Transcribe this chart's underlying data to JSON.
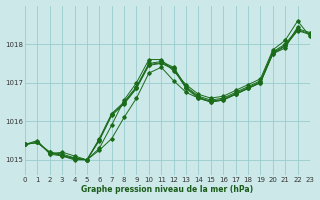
{
  "xlabel": "Graphe pression niveau de la mer (hPa)",
  "bg_color": "#cce8e8",
  "grid_color": "#99cccc",
  "line_color": "#1a6b1a",
  "xmin": 0,
  "xmax": 23,
  "ymin": 1014.6,
  "ymax": 1019.0,
  "yticks": [
    1015,
    1016,
    1017,
    1018
  ],
  "xticks": [
    0,
    1,
    2,
    3,
    4,
    5,
    6,
    7,
    8,
    9,
    10,
    11,
    12,
    13,
    14,
    15,
    16,
    17,
    18,
    19,
    20,
    21,
    22,
    23
  ],
  "series_smooth": {
    "x": [
      0,
      1,
      2,
      3,
      4,
      5,
      6,
      7,
      8,
      9,
      10,
      11,
      12,
      13,
      14,
      15,
      16,
      17,
      18,
      19,
      20,
      21,
      22,
      23
    ],
    "y": [
      1015.4,
      1015.45,
      1015.2,
      1015.15,
      1015.05,
      1015.0,
      1015.55,
      1016.2,
      1016.5,
      1016.9,
      1017.5,
      1017.55,
      1017.4,
      1016.9,
      1016.65,
      1016.55,
      1016.6,
      1016.75,
      1016.9,
      1017.05,
      1017.8,
      1018.0,
      1018.4,
      1018.3
    ]
  },
  "series_smooth2": {
    "x": [
      0,
      1,
      2,
      3,
      4,
      5,
      6,
      7,
      8,
      9,
      10,
      11,
      12,
      13,
      14,
      15,
      16,
      17,
      18,
      19,
      20,
      21,
      22,
      23
    ],
    "y": [
      1015.4,
      1015.45,
      1015.2,
      1015.1,
      1015.0,
      1015.0,
      1015.5,
      1016.15,
      1016.45,
      1016.85,
      1017.45,
      1017.5,
      1017.35,
      1016.85,
      1016.6,
      1016.5,
      1016.55,
      1016.7,
      1016.85,
      1017.0,
      1017.75,
      1017.95,
      1018.35,
      1018.25
    ]
  },
  "series_smooth3": {
    "x": [
      0,
      1,
      2,
      3,
      4,
      5,
      6,
      7,
      8,
      9,
      10,
      11,
      12,
      13,
      14,
      15,
      16,
      17,
      18,
      19,
      20,
      21,
      22,
      23
    ],
    "y": [
      1015.4,
      1015.45,
      1015.18,
      1015.12,
      1015.02,
      1015.0,
      1015.52,
      1016.18,
      1016.47,
      1016.87,
      1017.47,
      1017.52,
      1017.37,
      1016.87,
      1016.62,
      1016.52,
      1016.57,
      1016.72,
      1016.87,
      1017.02,
      1017.77,
      1017.97,
      1018.37,
      1018.27
    ]
  },
  "series_zigzag": {
    "x": [
      0,
      1,
      2,
      3,
      4,
      5,
      6,
      7,
      8,
      9,
      10,
      11,
      12,
      13,
      14,
      15,
      16,
      17,
      18,
      19,
      20,
      21,
      22,
      23
    ],
    "y": [
      1015.4,
      1015.5,
      1015.15,
      1015.1,
      1015.05,
      1015.0,
      1015.3,
      1015.9,
      1016.55,
      1017.0,
      1017.6,
      1017.6,
      1017.3,
      1016.95,
      1016.7,
      1016.6,
      1016.65,
      1016.8,
      1016.95,
      1017.1,
      1017.85,
      1018.1,
      1018.6,
      1018.2
    ]
  },
  "series_zigzag2": {
    "x": [
      2,
      3,
      4,
      5,
      6,
      7,
      8,
      9,
      10,
      11,
      12,
      13,
      14,
      15,
      16,
      17,
      18,
      19,
      20,
      21,
      22
    ],
    "y": [
      1015.15,
      1015.2,
      1015.1,
      1015.0,
      1015.25,
      1015.55,
      1016.1,
      1016.6,
      1017.25,
      1017.4,
      1017.05,
      1016.75,
      1016.6,
      1016.5,
      1016.55,
      1016.7,
      1016.85,
      1017.0,
      1017.75,
      1017.9,
      1018.45
    ]
  }
}
